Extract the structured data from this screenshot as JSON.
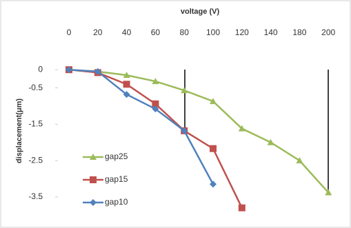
{
  "chart_data": {
    "type": "line",
    "x_label": "voltage (V)",
    "y_label": "displacement(μm)",
    "categories": [
      "0",
      "20",
      "40",
      "60",
      "80",
      "100",
      "120",
      "140",
      "180",
      "200"
    ],
    "ylim": [
      -3.9,
      0.25
    ],
    "yticks": [
      0,
      -0.5,
      -1.5,
      -2.5,
      -3.5
    ],
    "series": [
      {
        "name": "gap25",
        "color": "#9bbb59",
        "marker": "triangle",
        "values": [
          0,
          -0.05,
          -0.15,
          -0.32,
          -0.57,
          -0.87,
          -1.62,
          -2.0,
          -2.5,
          -3.38
        ]
      },
      {
        "name": "gap15",
        "color": "#c0504d",
        "marker": "square",
        "values": [
          0,
          -0.08,
          -0.4,
          -0.94,
          -1.68,
          -2.17,
          -3.8,
          null,
          null,
          null
        ]
      },
      {
        "name": "gap10",
        "color": "#4f81bd",
        "marker": "diamond",
        "values": [
          0,
          -0.05,
          -0.68,
          -1.08,
          -1.68,
          -3.15,
          null,
          null,
          null,
          null
        ]
      }
    ]
  }
}
